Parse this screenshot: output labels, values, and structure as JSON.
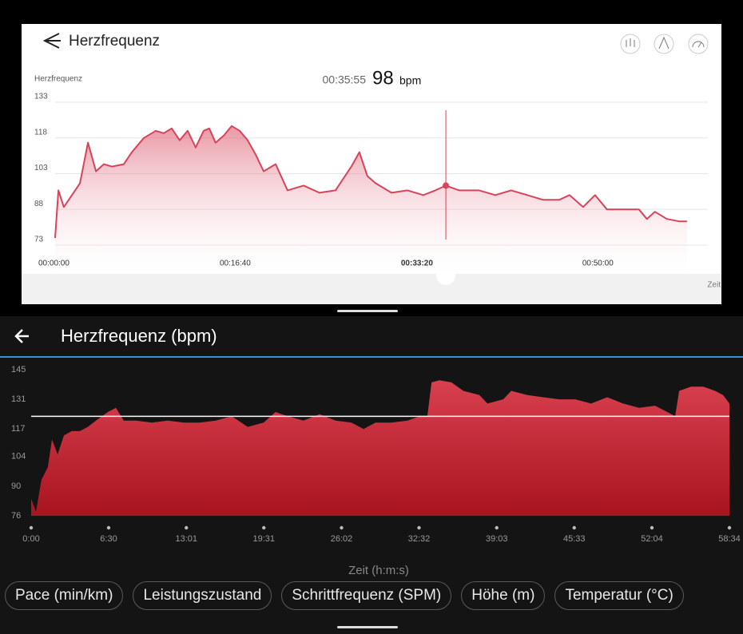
{
  "top_app": {
    "title": "Herzfrequenz"
  },
  "bottom_app": {
    "title": "Herzfrequenz (bpm)",
    "buttons": [
      "Pace (min/km)",
      "Leistungszustand",
      "Schrittfrequenz (SPM)",
      "Höhe (m)",
      "Temperatur (°C)"
    ]
  },
  "chart_data": [
    {
      "type": "area",
      "y_label": "Herzfrequenz",
      "x_label": "Zeit",
      "readout_time": "00:35:55",
      "readout_value": 98,
      "readout_unit": "bpm",
      "color": "#d9435a",
      "grid": true,
      "xlim": [
        0,
        3600
      ],
      "ylim": [
        73,
        133
      ],
      "xticks": [
        {
          "value": 0,
          "label": "00:00:00"
        },
        {
          "value": 1000,
          "label": "00:16:40"
        },
        {
          "value": 2000,
          "label": "00:33:20"
        },
        {
          "value": 3000,
          "label": "00:50:00"
        }
      ],
      "yticks": [
        73,
        88,
        103,
        118,
        133
      ],
      "x": [
        0,
        18,
        48,
        93,
        137,
        181,
        225,
        269,
        313,
        379,
        423,
        489,
        555,
        599,
        643,
        687,
        731,
        775,
        819,
        850,
        885,
        930,
        974,
        1018,
        1062,
        1106,
        1150,
        1216,
        1282,
        1370,
        1458,
        1546,
        1634,
        1678,
        1722,
        1767,
        1855,
        1943,
        2031,
        2097,
        2155,
        2229,
        2339,
        2427,
        2515,
        2604,
        2692,
        2780,
        2837,
        2912,
        2978,
        3044,
        3132,
        3220,
        3264,
        3308,
        3374,
        3441,
        3485
      ],
      "values": [
        76,
        96,
        89,
        94,
        99,
        116,
        104,
        107,
        106,
        107,
        112,
        118,
        121,
        120,
        122,
        117,
        121,
        114,
        121,
        122,
        116,
        119,
        123,
        121,
        117,
        111,
        104,
        107,
        96,
        98,
        95,
        96,
        106,
        112,
        102,
        99,
        95,
        96,
        94,
        96,
        98,
        96,
        96,
        94,
        96,
        94,
        92,
        92,
        94,
        89,
        94,
        88,
        88,
        88,
        84,
        87,
        84,
        83,
        83
      ]
    },
    {
      "type": "area",
      "x_label": "Zeit (h:m:s)",
      "color": "#d9404f",
      "grid": false,
      "reference_line": 123,
      "xlim": [
        0,
        3514
      ],
      "ylim": [
        76,
        145
      ],
      "xticks": [
        {
          "value": 0,
          "label": "0:00"
        },
        {
          "value": 390,
          "label": "6:30"
        },
        {
          "value": 781,
          "label": "13:01"
        },
        {
          "value": 1171,
          "label": "19:31"
        },
        {
          "value": 1562,
          "label": "26:02"
        },
        {
          "value": 1952,
          "label": "32:32"
        },
        {
          "value": 2343,
          "label": "39:03"
        },
        {
          "value": 2733,
          "label": "45:33"
        },
        {
          "value": 3124,
          "label": "52:04"
        },
        {
          "value": 3514,
          "label": "58:34"
        }
      ],
      "yticks": [
        76,
        90,
        104,
        117,
        131,
        145
      ],
      "x": [
        0,
        24,
        52,
        84,
        105,
        133,
        165,
        205,
        245,
        285,
        326,
        386,
        426,
        466,
        527,
        607,
        688,
        768,
        848,
        929,
        1009,
        1090,
        1170,
        1230,
        1291,
        1371,
        1452,
        1532,
        1612,
        1673,
        1733,
        1813,
        1894,
        1954,
        1994,
        2015,
        2055,
        2115,
        2175,
        2256,
        2296,
        2376,
        2416,
        2497,
        2577,
        2658,
        2738,
        2818,
        2899,
        2979,
        3059,
        3140,
        3201,
        3241,
        3261,
        3321,
        3382,
        3442,
        3482,
        3514
      ],
      "values": [
        84,
        78,
        93,
        99,
        112,
        105,
        114,
        116,
        116,
        118,
        121,
        125,
        127,
        121,
        121,
        120,
        121,
        120,
        120,
        121,
        123,
        118,
        120,
        125,
        123,
        121,
        124,
        121,
        120,
        117,
        120,
        120,
        121,
        123,
        123,
        139,
        140,
        139,
        135,
        133,
        129,
        131,
        135,
        133,
        132,
        131,
        131,
        129,
        132,
        129,
        127,
        128,
        125,
        123,
        135,
        137,
        137,
        135,
        133,
        129
      ]
    }
  ]
}
